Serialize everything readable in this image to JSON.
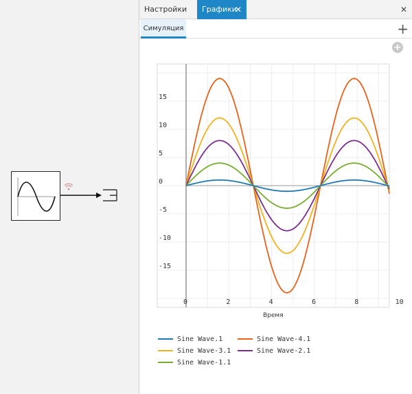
{
  "tabs": [
    {
      "label": "Настройки"
    },
    {
      "label": "Графики",
      "close": "✕"
    }
  ],
  "panel_close": "✕",
  "subtab": {
    "label": "Симуляция"
  },
  "add_plot": "+",
  "add_circle": "+",
  "colors": {
    "accent": "#1f87c5",
    "series": [
      "#1f77b4",
      "#e8611a",
      "#f0b21e",
      "#7b2d8e",
      "#77ac30"
    ]
  },
  "chart_data": {
    "type": "line",
    "xlabel": "Время",
    "ylabel": "",
    "xlim": [
      0,
      10
    ],
    "ylim": [
      -20,
      20
    ],
    "xticks": [
      0,
      2,
      4,
      6,
      8,
      10
    ],
    "yticks": [
      15,
      10,
      5,
      0,
      -5,
      -10,
      -15
    ],
    "grid": true,
    "legend_position": "bottom",
    "series": [
      {
        "name": "Sine Wave.1",
        "amplitude": 1,
        "color": "#1f77b4"
      },
      {
        "name": "Sine Wave-4.1",
        "amplitude": 19,
        "color": "#e8611a"
      },
      {
        "name": "Sine Wave-3.1",
        "amplitude": 12,
        "color": "#f0b21e"
      },
      {
        "name": "Sine Wave-2.1",
        "amplitude": 8,
        "color": "#7b2d8e"
      },
      {
        "name": "Sine Wave-1.1",
        "amplitude": 4,
        "color": "#77ac30"
      }
    ]
  }
}
